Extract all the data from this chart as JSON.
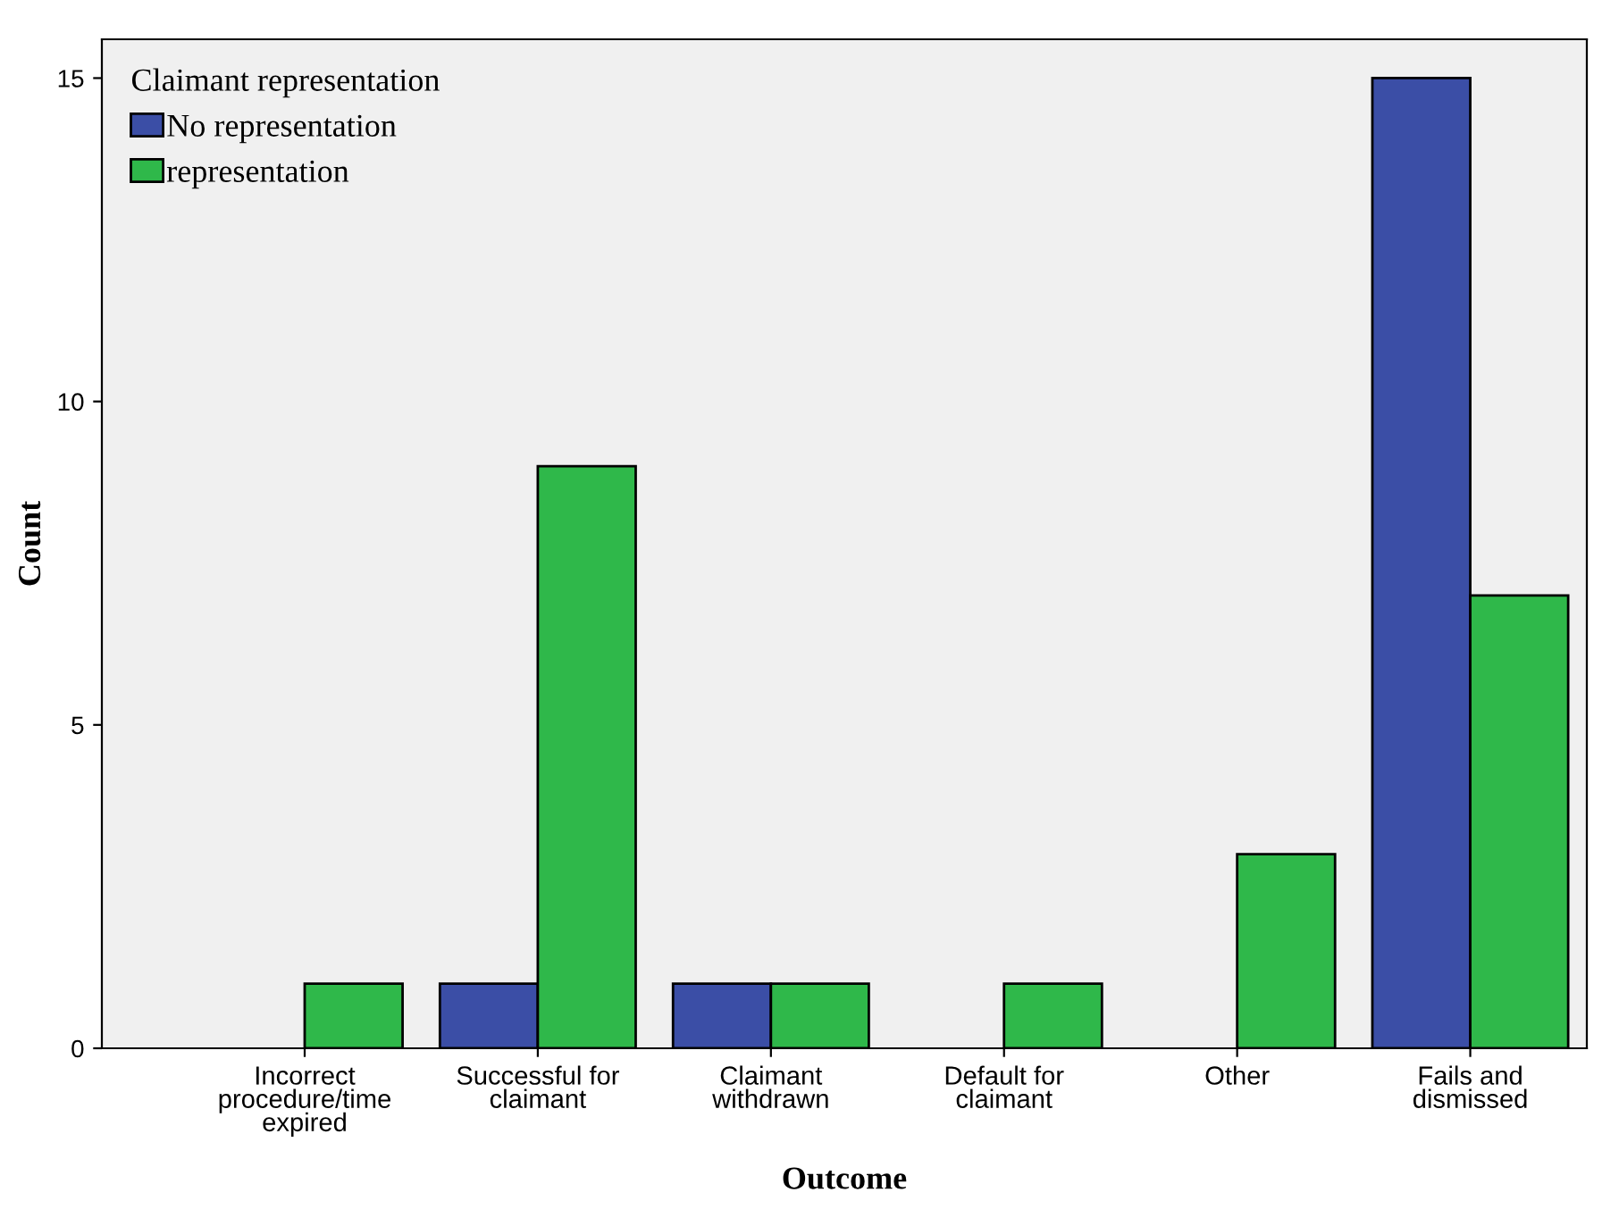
{
  "chart_data": {
    "type": "bar",
    "xlabel": "Outcome",
    "ylabel": "Count",
    "legend_title": "Claimant representation",
    "legend": "top left",
    "grid": false,
    "categories": [
      "Incorrect\nprocedure/time\nexpired",
      "Successful for\nclaimant",
      "Claimant\nwithdrawn",
      "Default for\nclaimant",
      "Other",
      "Fails and\ndismissed"
    ],
    "series": [
      {
        "name": "No representation",
        "color": "#3b4ea6",
        "values": [
          null,
          1,
          1,
          null,
          null,
          15
        ]
      },
      {
        "name": "representation",
        "color": "#2fb84a",
        "values": [
          1,
          9,
          1,
          1,
          3,
          7
        ]
      }
    ],
    "ylim": [
      0,
      15.6
    ],
    "yticks": [
      0,
      5,
      10,
      15
    ]
  }
}
